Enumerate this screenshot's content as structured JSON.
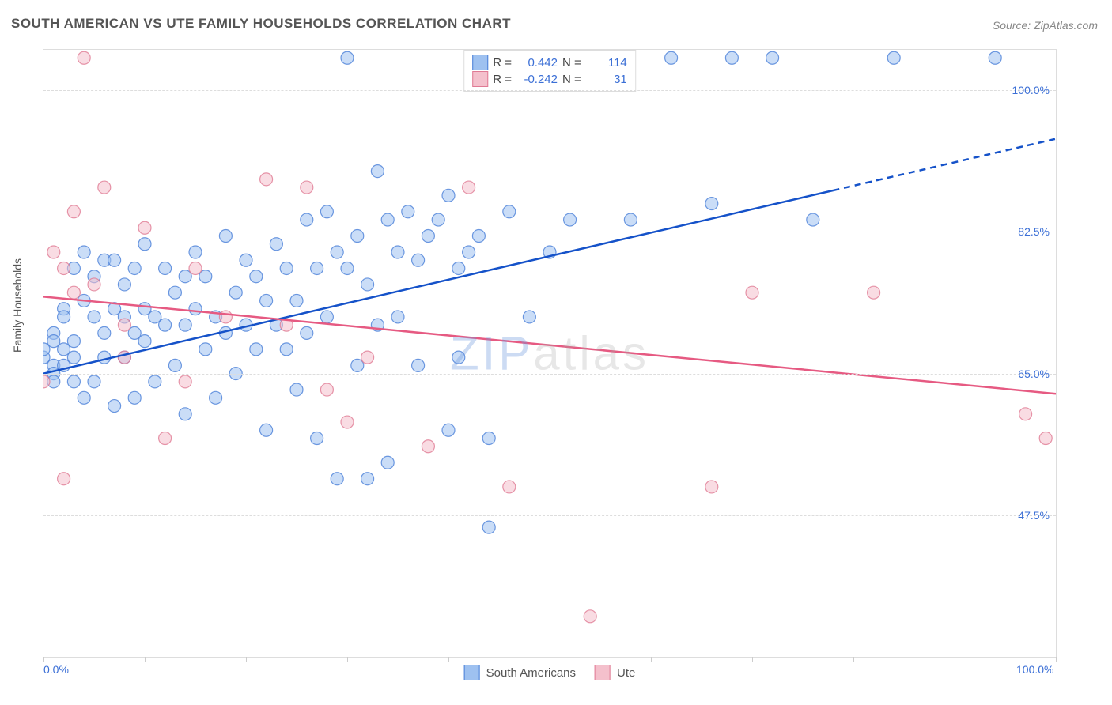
{
  "title": "SOUTH AMERICAN VS UTE FAMILY HOUSEHOLDS CORRELATION CHART",
  "source_prefix": "Source: ",
  "source": "ZipAtlas.com",
  "ylabel": "Family Households",
  "watermark_part1": "ZIP",
  "watermark_part2": "atlas",
  "chart": {
    "type": "scatter",
    "xlim": [
      0,
      100
    ],
    "ylim": [
      30,
      105
    ],
    "y_gridlines": [
      47.5,
      65.0,
      82.5,
      100.0
    ],
    "y_tick_labels": [
      "47.5%",
      "65.0%",
      "82.5%",
      "100.0%"
    ],
    "x_tick_positions": [
      0,
      10,
      20,
      30,
      40,
      50,
      60,
      70,
      80,
      90,
      100
    ],
    "x_tick_labels_shown": {
      "0": "0.0%",
      "100": "100.0%"
    },
    "background_color": "#ffffff",
    "grid_color": "#dddddd",
    "marker_radius": 8,
    "marker_opacity": 0.55,
    "series": [
      {
        "id": "south_americans",
        "label": "South Americans",
        "color_fill": "#9ec1f0",
        "color_stroke": "#4a7fd8",
        "R": "0.442",
        "N": "114",
        "trend": {
          "x0": 0,
          "y0": 65,
          "x1": 100,
          "y1": 94,
          "solid_until_x": 78,
          "stroke": "#1552c9",
          "width": 2.5
        },
        "points": [
          [
            0,
            67
          ],
          [
            0,
            68
          ],
          [
            1,
            70
          ],
          [
            1,
            66
          ],
          [
            1,
            69
          ],
          [
            1,
            65
          ],
          [
            1,
            64
          ],
          [
            2,
            66
          ],
          [
            2,
            73
          ],
          [
            2,
            68
          ],
          [
            2,
            72
          ],
          [
            3,
            67
          ],
          [
            3,
            78
          ],
          [
            3,
            64
          ],
          [
            3,
            69
          ],
          [
            4,
            74
          ],
          [
            4,
            62
          ],
          [
            4,
            80
          ],
          [
            5,
            72
          ],
          [
            5,
            64
          ],
          [
            5,
            77
          ],
          [
            6,
            67
          ],
          [
            6,
            70
          ],
          [
            6,
            79
          ],
          [
            7,
            73
          ],
          [
            7,
            61
          ],
          [
            7,
            79
          ],
          [
            8,
            72
          ],
          [
            8,
            67
          ],
          [
            8,
            76
          ],
          [
            9,
            78
          ],
          [
            9,
            70
          ],
          [
            9,
            62
          ],
          [
            10,
            73
          ],
          [
            10,
            69
          ],
          [
            10,
            81
          ],
          [
            11,
            72
          ],
          [
            11,
            64
          ],
          [
            12,
            71
          ],
          [
            12,
            78
          ],
          [
            13,
            66
          ],
          [
            13,
            75
          ],
          [
            14,
            77
          ],
          [
            14,
            60
          ],
          [
            14,
            71
          ],
          [
            15,
            73
          ],
          [
            15,
            80
          ],
          [
            16,
            68
          ],
          [
            16,
            77
          ],
          [
            17,
            72
          ],
          [
            17,
            62
          ],
          [
            18,
            82
          ],
          [
            18,
            70
          ],
          [
            19,
            75
          ],
          [
            19,
            65
          ],
          [
            20,
            71
          ],
          [
            20,
            79
          ],
          [
            21,
            77
          ],
          [
            21,
            68
          ],
          [
            22,
            74
          ],
          [
            22,
            58
          ],
          [
            23,
            81
          ],
          [
            23,
            71
          ],
          [
            24,
            68
          ],
          [
            24,
            78
          ],
          [
            25,
            63
          ],
          [
            25,
            74
          ],
          [
            26,
            84
          ],
          [
            26,
            70
          ],
          [
            27,
            57
          ],
          [
            27,
            78
          ],
          [
            28,
            85
          ],
          [
            28,
            72
          ],
          [
            29,
            52
          ],
          [
            29,
            80
          ],
          [
            30,
            78
          ],
          [
            30,
            104
          ],
          [
            31,
            66
          ],
          [
            31,
            82
          ],
          [
            32,
            76
          ],
          [
            32,
            52
          ],
          [
            33,
            90
          ],
          [
            33,
            71
          ],
          [
            34,
            54
          ],
          [
            34,
            84
          ],
          [
            35,
            80
          ],
          [
            35,
            72
          ],
          [
            36,
            85
          ],
          [
            37,
            66
          ],
          [
            37,
            79
          ],
          [
            38,
            82
          ],
          [
            39,
            84
          ],
          [
            40,
            87
          ],
          [
            40,
            58
          ],
          [
            41,
            78
          ],
          [
            41,
            67
          ],
          [
            42,
            80
          ],
          [
            43,
            82
          ],
          [
            44,
            57
          ],
          [
            44,
            46
          ],
          [
            46,
            85
          ],
          [
            48,
            72
          ],
          [
            50,
            80
          ],
          [
            52,
            84
          ],
          [
            54,
            103
          ],
          [
            56,
            103
          ],
          [
            58,
            84
          ],
          [
            62,
            104
          ],
          [
            66,
            86
          ],
          [
            68,
            104
          ],
          [
            72,
            104
          ],
          [
            76,
            84
          ],
          [
            84,
            104
          ],
          [
            94,
            104
          ]
        ]
      },
      {
        "id": "ute",
        "label": "Ute",
        "color_fill": "#f4c0cc",
        "color_stroke": "#e07a94",
        "R": "-0.242",
        "N": "31",
        "trend": {
          "x0": 0,
          "y0": 74.5,
          "x1": 100,
          "y1": 62.5,
          "solid_until_x": 100,
          "stroke": "#e65a82",
          "width": 2.5
        },
        "points": [
          [
            0,
            64
          ],
          [
            1,
            80
          ],
          [
            2,
            78
          ],
          [
            2,
            52
          ],
          [
            3,
            75
          ],
          [
            3,
            85
          ],
          [
            4,
            104
          ],
          [
            5,
            76
          ],
          [
            6,
            88
          ],
          [
            8,
            67
          ],
          [
            8,
            71
          ],
          [
            10,
            83
          ],
          [
            12,
            57
          ],
          [
            14,
            64
          ],
          [
            15,
            78
          ],
          [
            18,
            72
          ],
          [
            22,
            89
          ],
          [
            24,
            71
          ],
          [
            26,
            88
          ],
          [
            28,
            63
          ],
          [
            30,
            59
          ],
          [
            32,
            67
          ],
          [
            38,
            56
          ],
          [
            42,
            88
          ],
          [
            46,
            51
          ],
          [
            54,
            35
          ],
          [
            66,
            51
          ],
          [
            70,
            75
          ],
          [
            82,
            75
          ],
          [
            97,
            60
          ],
          [
            99,
            57
          ]
        ]
      }
    ]
  },
  "legend_top": {
    "R_label": "R =",
    "N_label": "N ="
  },
  "legend_bottom_labels": [
    "South Americans",
    "Ute"
  ]
}
